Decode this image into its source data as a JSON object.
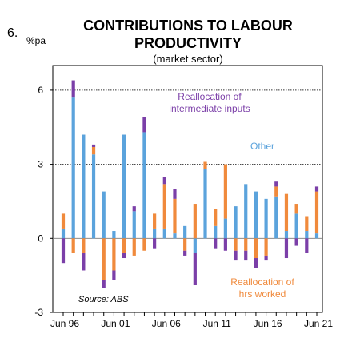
{
  "figure_number": "6.",
  "title_line1": "CONTRIBUTIONS TO LABOUR",
  "title_line2": "PRODUCTIVITY",
  "subtitle": "(market sector)",
  "unit": "%pa",
  "source": "Source: ABS",
  "annotations": {
    "reallocation_intermediate": [
      "Reallocation of",
      "intermediate inputs"
    ],
    "other": [
      "Other"
    ],
    "reallocation_hours": [
      "Reallocation of",
      "hrs worked"
    ]
  },
  "colors": {
    "other": "#5ba3dc",
    "reallocation_hours": "#f08a3c",
    "reallocation_intermediate": "#7b3fa8",
    "axis": "#000000",
    "grid": "#333333"
  },
  "chart_data": {
    "type": "bar",
    "stacked": true,
    "ylim": [
      -3,
      7
    ],
    "yticks": [
      -3,
      0,
      3,
      6
    ],
    "grid_lines_at": [
      3,
      6
    ],
    "xtick_labels": [
      "Jun 96",
      "Jun 01",
      "Jun 06",
      "Jun 11",
      "Jun 16",
      "Jun 21"
    ],
    "categories": [
      "1995/96",
      "1996/97",
      "1997/98",
      "1998/99",
      "1999/00",
      "2000/01",
      "2001/02",
      "2002/03",
      "2003/04",
      "2004/05",
      "2005/06",
      "2006/07",
      "2007/08",
      "2008/09",
      "2009/10",
      "2010/11",
      "2011/12",
      "2012/13",
      "2013/14",
      "2014/15",
      "2015/16",
      "2016/17",
      "2017/18",
      "2018/19",
      "2019/20",
      "2020/21"
    ],
    "series": [
      {
        "name": "Other",
        "key": "other",
        "values": [
          0.4,
          5.7,
          4.2,
          3.4,
          1.9,
          0.3,
          4.2,
          1.1,
          4.3,
          0.4,
          0.4,
          0.2,
          0.5,
          -0.6,
          2.8,
          0.5,
          0.8,
          1.3,
          2.2,
          1.9,
          1.6,
          1.7,
          0.3,
          1.0,
          0.3,
          0.2
        ]
      },
      {
        "name": "Reallocation of hrs worked",
        "key": "reallocation_hours",
        "values": [
          0.6,
          -0.6,
          -0.6,
          0.3,
          -1.7,
          -1.3,
          -0.6,
          -0.7,
          -0.5,
          0.6,
          1.8,
          1.4,
          -0.5,
          1.4,
          0.3,
          0.7,
          2.2,
          -0.5,
          -0.5,
          -0.8,
          -0.7,
          0.4,
          1.5,
          0.4,
          0.6,
          1.7
        ]
      },
      {
        "name": "Reallocation of intermediate inputs",
        "key": "reallocation_intermediate",
        "values": [
          -1.0,
          0.7,
          -0.7,
          0.1,
          -0.3,
          -0.4,
          -0.2,
          0.2,
          0.6,
          -0.4,
          0.3,
          0.4,
          -0.2,
          -1.3,
          0.0,
          -0.4,
          -0.5,
          -0.4,
          -0.4,
          -0.4,
          -0.2,
          0.2,
          -0.8,
          -0.3,
          -0.6,
          0.2
        ]
      }
    ]
  }
}
